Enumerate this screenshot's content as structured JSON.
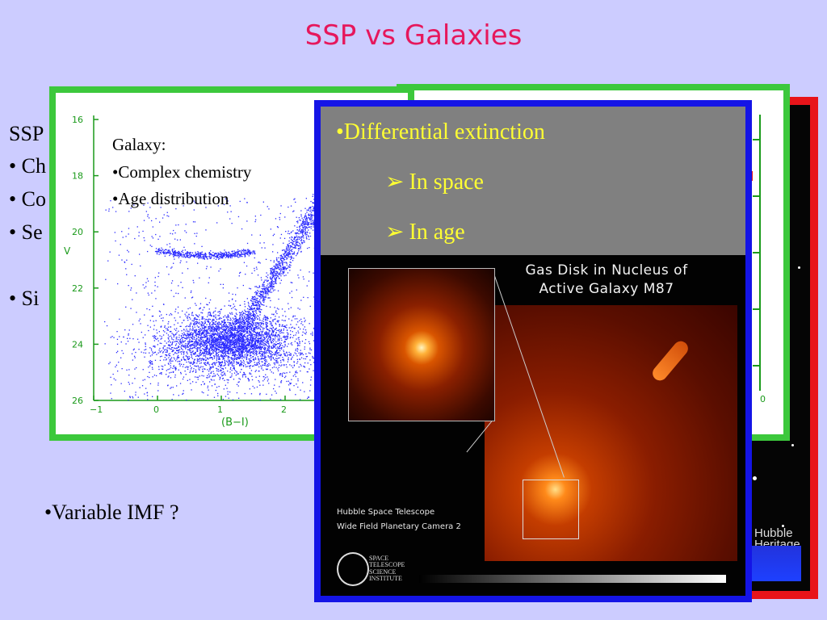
{
  "slide": {
    "title": "SSP vs Galaxies",
    "bg_lines": [
      "SSP",
      "• Ch",
      "• Co",
      "• Se",
      "• Si"
    ],
    "imf": "•Variable IMF  ?"
  },
  "cmd_plot": {
    "ylabel": "V",
    "xlabel": "(B−I)",
    "yticks": [
      "16",
      "18",
      "20",
      "22",
      "24",
      "26"
    ],
    "xticks": [
      "−1",
      "0",
      "1",
      "2"
    ],
    "galaxy_lines": [
      "Galaxy:",
      "•Complex chemistry",
      "•Age distribution"
    ]
  },
  "green2": {
    "zero_label": "0"
  },
  "blue_panel": {
    "main_bullet": "•Differential extinction",
    "sub_bullets": [
      "In space",
      "In age"
    ],
    "arrow": "➢",
    "m87_title_1": "Gas Disk in Nucleus of",
    "m87_title_2": "Active Galaxy M87",
    "hst_1": "Hubble Space Telescope",
    "hst_2": "Wide Field Planetary Camera 2",
    "stsci": [
      "SPACE",
      "TELESCOPE",
      "SCIENCE",
      "INSTITUTE"
    ]
  },
  "red_panel": {
    "hubble_1": "Hubble",
    "hubble_2": "Heritage"
  },
  "colors": {
    "title": "#e6175c",
    "bullet": "#ffff33",
    "plot": "#2a2aff",
    "frame_green": "#3cc83c",
    "frame_blue": "#1414e6",
    "frame_red": "#e8141a"
  }
}
